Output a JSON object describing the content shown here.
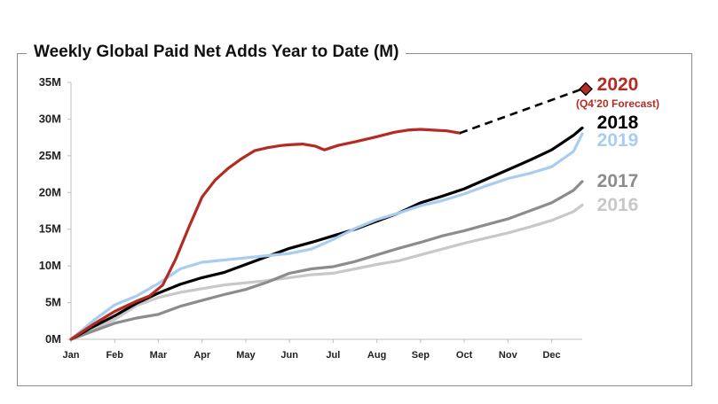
{
  "chart_data": {
    "type": "line",
    "title": "Weekly Global Paid Net Adds Year to Date (M)",
    "xlabel": "",
    "ylabel": "",
    "ylim": [
      0,
      35
    ],
    "xlim": [
      0,
      11.7
    ],
    "grid": false,
    "legend": "right-side labels",
    "y_ticks": [
      "0M",
      "5M",
      "10M",
      "15M",
      "20M",
      "25M",
      "30M",
      "35M"
    ],
    "x_ticks": [
      "Jan",
      "Feb",
      "Mar",
      "Apr",
      "May",
      "Jun",
      "Jul",
      "Aug",
      "Sep",
      "Oct",
      "Nov",
      "Dec"
    ],
    "series": [
      {
        "name": "2016",
        "color": "#c8c8c8",
        "x": [
          0,
          0.5,
          1,
          1.5,
          2,
          2.5,
          3,
          3.5,
          4,
          4.5,
          5,
          5.5,
          6,
          6.5,
          7,
          7.5,
          8,
          8.5,
          9,
          9.5,
          10,
          10.5,
          11,
          11.5,
          11.7
        ],
        "y": [
          0,
          1.4,
          2.7,
          4.6,
          5.7,
          6.4,
          6.9,
          7.4,
          7.7,
          8.0,
          8.4,
          8.8,
          9.0,
          9.6,
          10.2,
          10.7,
          11.5,
          12.3,
          13.1,
          13.8,
          14.5,
          15.3,
          16.2,
          17.4,
          18.3
        ]
      },
      {
        "name": "2017",
        "color": "#8c8c8c",
        "x": [
          0,
          0.5,
          1,
          1.5,
          2,
          2.5,
          3,
          3.5,
          4,
          4.5,
          5,
          5.5,
          6,
          6.5,
          7,
          7.5,
          8,
          8.5,
          9,
          9.5,
          10,
          10.5,
          11,
          11.5,
          11.7
        ],
        "y": [
          0,
          1.1,
          2.2,
          2.9,
          3.4,
          4.5,
          5.3,
          6.1,
          6.8,
          7.8,
          9.0,
          9.6,
          9.9,
          10.6,
          11.5,
          12.4,
          13.2,
          14.1,
          14.8,
          15.6,
          16.4,
          17.5,
          18.6,
          20.3,
          21.5
        ]
      },
      {
        "name": "2018",
        "color": "#000000",
        "x": [
          0,
          0.5,
          1,
          1.5,
          2,
          2.5,
          3,
          3.5,
          4,
          4.5,
          5,
          5.5,
          6,
          6.5,
          7,
          7.5,
          8,
          8.5,
          9,
          9.5,
          10,
          10.5,
          11,
          11.5,
          11.7
        ],
        "y": [
          0,
          1.7,
          3.2,
          4.9,
          6.3,
          7.5,
          8.4,
          9.1,
          10.2,
          11.3,
          12.4,
          13.2,
          14.1,
          15.0,
          16.1,
          17.2,
          18.6,
          19.5,
          20.5,
          21.8,
          23.1,
          24.4,
          25.8,
          27.8,
          28.8
        ]
      },
      {
        "name": "2019",
        "color": "#a9cdf0",
        "x": [
          0,
          0.5,
          1,
          1.5,
          2,
          2.5,
          3,
          3.5,
          4,
          4.5,
          5,
          5.5,
          6,
          6.5,
          7,
          7.5,
          8,
          8.5,
          9,
          9.5,
          10,
          10.5,
          11,
          11.5,
          11.7
        ],
        "y": [
          0,
          2.5,
          4.7,
          5.9,
          7.6,
          9.6,
          10.5,
          10.8,
          11.1,
          11.4,
          11.7,
          12.3,
          13.6,
          15.1,
          16.3,
          17.2,
          18.2,
          18.9,
          19.8,
          20.9,
          21.9,
          22.6,
          23.5,
          25.6,
          28.0
        ]
      },
      {
        "name": "2020",
        "color": "#b52a22",
        "x": [
          0,
          0.5,
          1,
          1.5,
          1.8,
          2.1,
          2.4,
          2.7,
          3,
          3.3,
          3.6,
          3.9,
          4.2,
          4.5,
          4.8,
          5,
          5.3,
          5.6,
          5.8,
          6.1,
          6.5,
          7,
          7.4,
          7.7,
          8,
          8.3,
          8.6,
          8.9
        ],
        "y": [
          0,
          2.0,
          3.8,
          5.2,
          5.9,
          7.4,
          11.0,
          15.3,
          19.4,
          21.7,
          23.3,
          24.6,
          25.7,
          26.1,
          26.4,
          26.5,
          26.6,
          26.3,
          25.8,
          26.4,
          26.9,
          27.6,
          28.2,
          28.5,
          28.6,
          28.5,
          28.4,
          28.1
        ]
      }
    ],
    "forecast": {
      "series": "2020",
      "label": "(Q4’20 Forecast)",
      "x": [
        8.9,
        11.7
      ],
      "y": [
        28.1,
        34.1
      ],
      "marker": "diamond",
      "color": "#000000"
    },
    "side_labels": [
      {
        "text": "2020",
        "color": "#b52a22"
      },
      {
        "text": "2018",
        "color": "#000000"
      },
      {
        "text": "2019",
        "color": "#a9cdf0"
      },
      {
        "text": "2017",
        "color": "#8c8c8c"
      },
      {
        "text": "2016",
        "color": "#c8c8c8"
      }
    ]
  }
}
